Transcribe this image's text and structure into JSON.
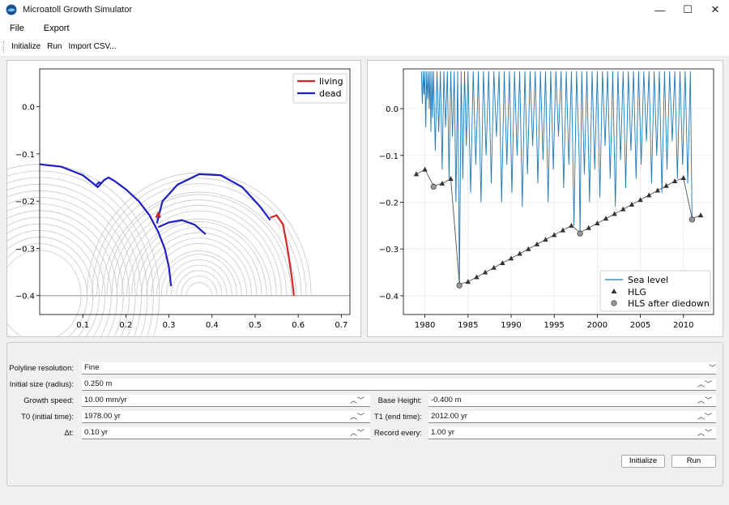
{
  "window": {
    "title": "Microatoll Growth Simulator",
    "controls": {
      "minimize": "—",
      "maximize": "☐",
      "close": "✕"
    }
  },
  "menu": {
    "file": "File",
    "export": "Export"
  },
  "toolbar": {
    "initialize": "Initialize",
    "run": "Run",
    "import_csv": "Import CSV..."
  },
  "colors": {
    "living": "#d62728",
    "dead": "#1f1fbf",
    "sea_level": "#1f77b4",
    "hlg": "#333333",
    "hls": "#999999",
    "contour": "#c8c8c8"
  },
  "chart_data": [
    {
      "type": "line",
      "title": "",
      "xlabel": "",
      "ylabel": "",
      "xlim": [
        0.0,
        0.72
      ],
      "ylim": [
        -0.44,
        0.08
      ],
      "xticks": [
        0.1,
        0.2,
        0.3,
        0.4,
        0.5,
        0.6,
        0.7
      ],
      "yticks": [
        0.0,
        -0.1,
        -0.2,
        -0.3,
        -0.4
      ],
      "xtick_labels": [
        "0.1",
        "0.2",
        "0.3",
        "0.4",
        "0.5",
        "0.6",
        "0.7"
      ],
      "ytick_labels": [
        "0.0",
        "−0.1",
        "−0.2",
        "−0.3",
        "−0.4"
      ],
      "grid": false,
      "legend": {
        "placement": "top-right",
        "entries": [
          "living",
          "dead"
        ]
      },
      "base_level": -0.4,
      "series": [
        {
          "name": "living",
          "points": [
            [
              0.535,
              -0.235
            ],
            [
              0.55,
              -0.23
            ],
            [
              0.565,
              -0.25
            ],
            [
              0.575,
              -0.3
            ],
            [
              0.585,
              -0.36
            ],
            [
              0.59,
              -0.4
            ]
          ]
        },
        {
          "name": "dead",
          "points": [
            [
              0.0,
              -0.122
            ],
            [
              0.05,
              -0.127
            ],
            [
              0.1,
              -0.145
            ],
            [
              0.135,
              -0.17
            ],
            [
              0.15,
              -0.155
            ],
            [
              0.16,
              -0.15
            ],
            [
              0.175,
              -0.158
            ],
            [
              0.2,
              -0.175
            ],
            [
              0.23,
              -0.2
            ],
            [
              0.255,
              -0.23
            ],
            [
              0.275,
              -0.265
            ],
            [
              0.29,
              -0.3
            ],
            [
              0.3,
              -0.34
            ],
            [
              0.305,
              -0.38
            ]
          ]
        },
        {
          "name": "dead",
          "points": [
            [
              0.272,
              -0.247
            ],
            [
              0.285,
              -0.2
            ],
            [
              0.32,
              -0.165
            ],
            [
              0.37,
              -0.143
            ],
            [
              0.42,
              -0.145
            ],
            [
              0.47,
              -0.17
            ],
            [
              0.51,
              -0.21
            ],
            [
              0.535,
              -0.24
            ]
          ]
        },
        {
          "name": "dead",
          "points": [
            [
              0.275,
              -0.255
            ],
            [
              0.3,
              -0.245
            ],
            [
              0.33,
              -0.24
            ],
            [
              0.36,
              -0.25
            ],
            [
              0.385,
              -0.27
            ]
          ]
        },
        {
          "name": "dead",
          "points": [
            [
              0.132,
              -0.165
            ],
            [
              0.138,
              -0.16
            ],
            [
              0.143,
              -0.163
            ]
          ]
        },
        {
          "name": "living",
          "points": [
            [
              0.27,
              -0.235
            ],
            [
              0.275,
              -0.225
            ],
            [
              0.28,
              -0.235
            ]
          ]
        }
      ]
    },
    {
      "type": "line",
      "title": "",
      "xlabel": "",
      "ylabel": "",
      "xlim": [
        1977.5,
        2013.5
      ],
      "ylim": [
        -0.44,
        0.085
      ],
      "xticks": [
        1980,
        1985,
        1990,
        1995,
        2000,
        2005,
        2010
      ],
      "yticks": [
        0.0,
        -0.1,
        -0.2,
        -0.3,
        -0.4
      ],
      "xtick_labels": [
        "1980",
        "1985",
        "1990",
        "1995",
        "2000",
        "2005",
        "2010"
      ],
      "ytick_labels": [
        "0.0",
        "−0.1",
        "−0.2",
        "−0.3",
        "−0.4"
      ],
      "grid": true,
      "legend": {
        "placement": "bottom-right",
        "entries": [
          "Sea level",
          "HLG",
          "HLS after diedown"
        ]
      },
      "series": [
        {
          "name": "Sea level",
          "x": [
            1979.6,
            1979.7,
            1979.8,
            1979.9,
            1980.0,
            1980.1,
            1980.2,
            1980.3,
            1980.4,
            1980.5,
            1980.6,
            1980.7,
            1980.8,
            1980.9,
            1981.0,
            1981.2,
            1981.4,
            1981.6,
            1981.8,
            1982.0,
            1982.2,
            1982.4,
            1982.6,
            1982.8,
            1983.0,
            1983.2,
            1983.4,
            1983.6,
            1983.8,
            1984.0,
            1984.2,
            1984.4,
            1984.6,
            1984.8,
            1985.0,
            1985.3,
            1985.6,
            1985.9,
            1986.2,
            1986.5,
            1986.8,
            1987.1,
            1987.4,
            1987.7,
            1988.0,
            1988.3,
            1988.6,
            1988.9,
            1989.2,
            1989.5,
            1989.8,
            1990.1,
            1990.4,
            1990.7,
            1991.0,
            1991.3,
            1991.6,
            1991.9,
            1992.2,
            1992.5,
            1992.8,
            1993.1,
            1993.4,
            1993.7,
            1994.0,
            1994.3,
            1994.6,
            1994.9,
            1995.2,
            1995.5,
            1995.8,
            1996.1,
            1996.4,
            1996.7,
            1997.0,
            1997.3,
            1997.6,
            1997.9,
            1998.0,
            1998.2,
            1998.5,
            1998.8,
            1999.1,
            1999.4,
            1999.7,
            2000.0,
            2000.3,
            2000.6,
            2000.9,
            2001.2,
            2001.5,
            2001.8,
            2002.1,
            2002.4,
            2002.7,
            2003.0,
            2003.3,
            2003.6,
            2003.9,
            2004.2,
            2004.5,
            2004.8,
            2005.1,
            2005.4,
            2005.7,
            2006.0,
            2006.3,
            2006.6,
            2006.9,
            2007.2,
            2007.5,
            2007.8,
            2008.1,
            2008.4,
            2008.7,
            2009.0,
            2009.3,
            2009.6,
            2009.9,
            2010.2,
            2010.5,
            2010.8,
            2011.0
          ],
          "y": [
            0.08,
            0.01,
            0.08,
            0.03,
            0.08,
            -0.04,
            0.08,
            0.02,
            0.08,
            0.0,
            0.08,
            -0.05,
            0.08,
            -0.02,
            0.08,
            -0.09,
            0.08,
            -0.05,
            0.08,
            -0.13,
            0.08,
            -0.04,
            0.08,
            -0.15,
            0.08,
            -0.06,
            0.08,
            -0.2,
            0.08,
            -0.38,
            0.08,
            -0.15,
            0.08,
            -0.08,
            0.08,
            -0.18,
            0.08,
            -0.12,
            0.08,
            -0.2,
            0.08,
            -0.1,
            0.08,
            -0.16,
            0.08,
            -0.06,
            0.08,
            -0.2,
            0.08,
            -0.12,
            0.08,
            -0.18,
            0.08,
            -0.1,
            0.08,
            -0.21,
            0.08,
            -0.14,
            0.08,
            -0.08,
            0.08,
            -0.16,
            0.08,
            -0.11,
            0.08,
            -0.2,
            0.08,
            -0.13,
            0.08,
            -0.06,
            0.08,
            -0.17,
            0.08,
            -0.12,
            0.08,
            -0.25,
            0.08,
            -0.1,
            -0.27,
            0.08,
            -0.14,
            0.08,
            -0.2,
            0.08,
            -0.13,
            0.08,
            -0.19,
            0.08,
            -0.08,
            0.08,
            -0.15,
            0.08,
            -0.21,
            0.08,
            -0.11,
            0.08,
            -0.17,
            0.08,
            -0.09,
            0.08,
            -0.15,
            0.08,
            -0.12,
            0.08,
            -0.07,
            0.08,
            -0.16,
            0.08,
            -0.1,
            0.08,
            -0.18,
            0.08,
            -0.13,
            0.08,
            -0.07,
            0.08,
            -0.15,
            0.08,
            -0.12,
            0.08,
            -0.16,
            0.08,
            -0.24
          ]
        },
        {
          "name": "HLG",
          "x": [
            1979,
            1980,
            1981,
            1982,
            1983,
            1984,
            1985,
            1986,
            1987,
            1988,
            1989,
            1990,
            1991,
            1992,
            1993,
            1994,
            1995,
            1996,
            1997,
            1998,
            1999,
            2000,
            2001,
            2002,
            2003,
            2004,
            2005,
            2006,
            2007,
            2008,
            2009,
            2010,
            2011,
            2012
          ],
          "y": [
            -0.14,
            -0.13,
            -0.165,
            -0.16,
            -0.15,
            -0.375,
            -0.37,
            -0.36,
            -0.35,
            -0.34,
            -0.33,
            -0.32,
            -0.31,
            -0.3,
            -0.29,
            -0.28,
            -0.27,
            -0.26,
            -0.25,
            -0.265,
            -0.255,
            -0.245,
            -0.235,
            -0.225,
            -0.215,
            -0.205,
            -0.195,
            -0.185,
            -0.175,
            -0.165,
            -0.155,
            -0.148,
            -0.235,
            -0.228
          ]
        },
        {
          "name": "HLS after diedown",
          "x": [
            1981,
            1984,
            1998,
            2011
          ],
          "y": [
            -0.167,
            -0.378,
            -0.267,
            -0.237
          ]
        }
      ]
    }
  ],
  "form": {
    "polyline_resolution": {
      "label": "Polyline resolution:",
      "value": "Fine"
    },
    "initial_size": {
      "label": "Initial size (radius):",
      "value": "0.250 m"
    },
    "growth_speed": {
      "label": "Growth speed:",
      "value": "10.00 mm/yr"
    },
    "base_height": {
      "label": "Base Height:",
      "value": "-0.400 m"
    },
    "t0": {
      "label": "T0 (initial time):",
      "value": "1978.00 yr"
    },
    "t1": {
      "label": "T1 (end time):",
      "value": "2012.00 yr"
    },
    "dt": {
      "label": "Δt:",
      "value": "0.10 yr"
    },
    "record_every": {
      "label": "Record every:",
      "value": "1.00 yr"
    },
    "initialize_button": "Initialize",
    "run_button": "Run"
  }
}
